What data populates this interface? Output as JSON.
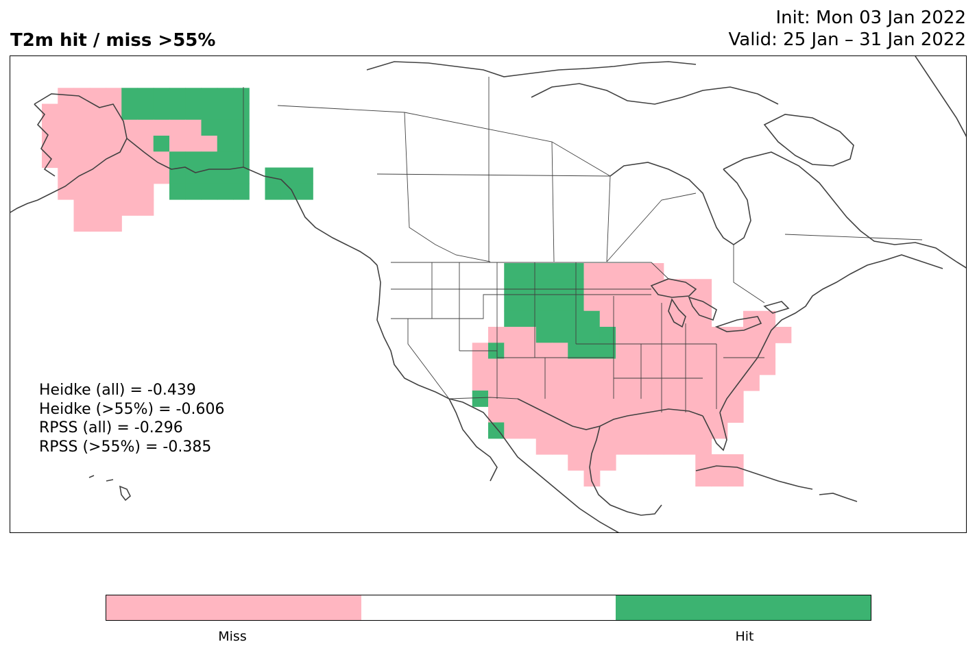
{
  "title": "T2m hit / miss  >55%",
  "init_line": "Init: Mon 03 Jan 2022",
  "valid_line": "Valid: 25 Jan – 31 Jan 2022",
  "stats": [
    "Heidke (all) = -0.439",
    "Heidke (>55%) = -0.606",
    "RPSS (all) = -0.296",
    "RPSS (>55%) = -0.385"
  ],
  "colors": {
    "miss": "#ffb6c1",
    "neutral": "#ffffff",
    "hit": "#3cb371",
    "coast": "#404040"
  },
  "legend": {
    "miss_label": "Miss",
    "hit_label": "Hit"
  }
}
